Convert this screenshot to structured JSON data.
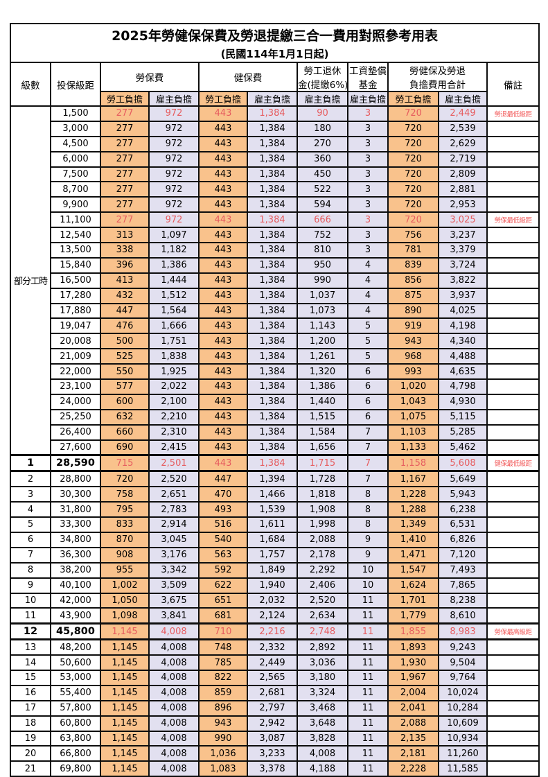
{
  "page": {
    "title": "2025年勞健保保費及勞退提繳三合一費用對照參考用表",
    "subtitle": "(民國114年1月1日起)"
  },
  "colors": {
    "employee_share_bg": "#f9c28c",
    "employer_share_bg": "#e2e0f0",
    "highlight_value_text": "#e65c5f",
    "remark_text": "#f25c5c",
    "grid_border": "#0d0d0d"
  },
  "header": {
    "level": "級數",
    "bracket": "投保級距",
    "labor_fee": "勞保費",
    "health_fee": "健保費",
    "pension_line1": "勞工退休",
    "pension_line2": "金(提繳6%)",
    "wage_fund_line1": "工資墊償",
    "wage_fund_line2": "基金",
    "total_line1": "勞健保及勞退",
    "total_line2": "負擔費用合計",
    "remark": "備註",
    "employee_share": "勞工負擔",
    "employer_share": "雇主負擔"
  },
  "part_time_label": "部分工時",
  "rows": [
    {
      "level": "",
      "bracket": "1,500",
      "values": [
        "277",
        "972",
        "443",
        "1,384",
        "90",
        "3",
        "720",
        "2,449"
      ],
      "remark": "勞退最低級距",
      "red": true,
      "bold": false
    },
    {
      "level": "",
      "bracket": "3,000",
      "values": [
        "277",
        "972",
        "443",
        "1,384",
        "180",
        "3",
        "720",
        "2,539"
      ],
      "remark": "",
      "red": false,
      "bold": false
    },
    {
      "level": "",
      "bracket": "4,500",
      "values": [
        "277",
        "972",
        "443",
        "1,384",
        "270",
        "3",
        "720",
        "2,629"
      ],
      "remark": "",
      "red": false,
      "bold": false
    },
    {
      "level": "",
      "bracket": "6,000",
      "values": [
        "277",
        "972",
        "443",
        "1,384",
        "360",
        "3",
        "720",
        "2,719"
      ],
      "remark": "",
      "red": false,
      "bold": false
    },
    {
      "level": "",
      "bracket": "7,500",
      "values": [
        "277",
        "972",
        "443",
        "1,384",
        "450",
        "3",
        "720",
        "2,809"
      ],
      "remark": "",
      "red": false,
      "bold": false
    },
    {
      "level": "",
      "bracket": "8,700",
      "values": [
        "277",
        "972",
        "443",
        "1,384",
        "522",
        "3",
        "720",
        "2,881"
      ],
      "remark": "",
      "red": false,
      "bold": false
    },
    {
      "level": "",
      "bracket": "9,900",
      "values": [
        "277",
        "972",
        "443",
        "1,384",
        "594",
        "3",
        "720",
        "2,953"
      ],
      "remark": "",
      "red": false,
      "bold": false
    },
    {
      "level": "",
      "bracket": "11,100",
      "values": [
        "277",
        "972",
        "443",
        "1,384",
        "666",
        "3",
        "720",
        "3,025"
      ],
      "remark": "勞保最低級距",
      "red": true,
      "bold": false
    },
    {
      "level": "",
      "bracket": "12,540",
      "values": [
        "313",
        "1,097",
        "443",
        "1,384",
        "752",
        "3",
        "756",
        "3,237"
      ],
      "remark": "",
      "red": false,
      "bold": false
    },
    {
      "level": "",
      "bracket": "13,500",
      "values": [
        "338",
        "1,182",
        "443",
        "1,384",
        "810",
        "3",
        "781",
        "3,379"
      ],
      "remark": "",
      "red": false,
      "bold": false
    },
    {
      "level": "",
      "bracket": "15,840",
      "values": [
        "396",
        "1,386",
        "443",
        "1,384",
        "950",
        "4",
        "839",
        "3,724"
      ],
      "remark": "",
      "red": false,
      "bold": false
    },
    {
      "level": "",
      "bracket": "16,500",
      "values": [
        "413",
        "1,444",
        "443",
        "1,384",
        "990",
        "4",
        "856",
        "3,822"
      ],
      "remark": "",
      "red": false,
      "bold": false
    },
    {
      "level": "",
      "bracket": "17,280",
      "values": [
        "432",
        "1,512",
        "443",
        "1,384",
        "1,037",
        "4",
        "875",
        "3,937"
      ],
      "remark": "",
      "red": false,
      "bold": false
    },
    {
      "level": "",
      "bracket": "17,880",
      "values": [
        "447",
        "1,564",
        "443",
        "1,384",
        "1,073",
        "4",
        "890",
        "4,025"
      ],
      "remark": "",
      "red": false,
      "bold": false
    },
    {
      "level": "",
      "bracket": "19,047",
      "values": [
        "476",
        "1,666",
        "443",
        "1,384",
        "1,143",
        "5",
        "919",
        "4,198"
      ],
      "remark": "",
      "red": false,
      "bold": false
    },
    {
      "level": "",
      "bracket": "20,008",
      "values": [
        "500",
        "1,751",
        "443",
        "1,384",
        "1,200",
        "5",
        "943",
        "4,340"
      ],
      "remark": "",
      "red": false,
      "bold": false
    },
    {
      "level": "",
      "bracket": "21,009",
      "values": [
        "525",
        "1,838",
        "443",
        "1,384",
        "1,261",
        "5",
        "968",
        "4,488"
      ],
      "remark": "",
      "red": false,
      "bold": false
    },
    {
      "level": "",
      "bracket": "22,000",
      "values": [
        "550",
        "1,925",
        "443",
        "1,384",
        "1,320",
        "6",
        "993",
        "4,635"
      ],
      "remark": "",
      "red": false,
      "bold": false
    },
    {
      "level": "",
      "bracket": "23,100",
      "values": [
        "577",
        "2,022",
        "443",
        "1,384",
        "1,386",
        "6",
        "1,020",
        "4,798"
      ],
      "remark": "",
      "red": false,
      "bold": false
    },
    {
      "level": "",
      "bracket": "24,000",
      "values": [
        "600",
        "2,100",
        "443",
        "1,384",
        "1,440",
        "6",
        "1,043",
        "4,930"
      ],
      "remark": "",
      "red": false,
      "bold": false
    },
    {
      "level": "",
      "bracket": "25,250",
      "values": [
        "632",
        "2,210",
        "443",
        "1,384",
        "1,515",
        "6",
        "1,075",
        "5,115"
      ],
      "remark": "",
      "red": false,
      "bold": false
    },
    {
      "level": "",
      "bracket": "26,400",
      "values": [
        "660",
        "2,310",
        "443",
        "1,384",
        "1,584",
        "7",
        "1,103",
        "5,285"
      ],
      "remark": "",
      "red": false,
      "bold": false
    },
    {
      "level": "",
      "bracket": "27,600",
      "values": [
        "690",
        "2,415",
        "443",
        "1,384",
        "1,656",
        "7",
        "1,133",
        "5,462"
      ],
      "remark": "",
      "red": false,
      "bold": false
    },
    {
      "level": "1",
      "bracket": "28,590",
      "values": [
        "715",
        "2,501",
        "443",
        "1,384",
        "1,715",
        "7",
        "1,158",
        "5,608"
      ],
      "remark": "健保最低級距",
      "red": true,
      "bold": true
    },
    {
      "level": "2",
      "bracket": "28,800",
      "values": [
        "720",
        "2,520",
        "447",
        "1,394",
        "1,728",
        "7",
        "1,167",
        "5,649"
      ],
      "remark": "",
      "red": false,
      "bold": false
    },
    {
      "level": "3",
      "bracket": "30,300",
      "values": [
        "758",
        "2,651",
        "470",
        "1,466",
        "1,818",
        "8",
        "1,228",
        "5,943"
      ],
      "remark": "",
      "red": false,
      "bold": false
    },
    {
      "level": "4",
      "bracket": "31,800",
      "values": [
        "795",
        "2,783",
        "493",
        "1,539",
        "1,908",
        "8",
        "1,288",
        "6,238"
      ],
      "remark": "",
      "red": false,
      "bold": false
    },
    {
      "level": "5",
      "bracket": "33,300",
      "values": [
        "833",
        "2,914",
        "516",
        "1,611",
        "1,998",
        "8",
        "1,349",
        "6,531"
      ],
      "remark": "",
      "red": false,
      "bold": false
    },
    {
      "level": "6",
      "bracket": "34,800",
      "values": [
        "870",
        "3,045",
        "540",
        "1,684",
        "2,088",
        "9",
        "1,410",
        "6,826"
      ],
      "remark": "",
      "red": false,
      "bold": false
    },
    {
      "level": "7",
      "bracket": "36,300",
      "values": [
        "908",
        "3,176",
        "563",
        "1,757",
        "2,178",
        "9",
        "1,471",
        "7,120"
      ],
      "remark": "",
      "red": false,
      "bold": false
    },
    {
      "level": "8",
      "bracket": "38,200",
      "values": [
        "955",
        "3,342",
        "592",
        "1,849",
        "2,292",
        "10",
        "1,547",
        "7,493"
      ],
      "remark": "",
      "red": false,
      "bold": false
    },
    {
      "level": "9",
      "bracket": "40,100",
      "values": [
        "1,002",
        "3,509",
        "622",
        "1,940",
        "2,406",
        "10",
        "1,624",
        "7,865"
      ],
      "remark": "",
      "red": false,
      "bold": false
    },
    {
      "level": "10",
      "bracket": "42,000",
      "values": [
        "1,050",
        "3,675",
        "651",
        "2,032",
        "2,520",
        "11",
        "1,701",
        "8,238"
      ],
      "remark": "",
      "red": false,
      "bold": false
    },
    {
      "level": "11",
      "bracket": "43,900",
      "values": [
        "1,098",
        "3,841",
        "681",
        "2,124",
        "2,634",
        "11",
        "1,779",
        "8,610"
      ],
      "remark": "",
      "red": false,
      "bold": false
    },
    {
      "level": "12",
      "bracket": "45,800",
      "values": [
        "1,145",
        "4,008",
        "710",
        "2,216",
        "2,748",
        "11",
        "1,855",
        "8,983"
      ],
      "remark": "勞保最高級距",
      "red": true,
      "bold": true
    },
    {
      "level": "13",
      "bracket": "48,200",
      "values": [
        "1,145",
        "4,008",
        "748",
        "2,332",
        "2,892",
        "11",
        "1,893",
        "9,243"
      ],
      "remark": "",
      "red": false,
      "bold": false
    },
    {
      "level": "14",
      "bracket": "50,600",
      "values": [
        "1,145",
        "4,008",
        "785",
        "2,449",
        "3,036",
        "11",
        "1,930",
        "9,504"
      ],
      "remark": "",
      "red": false,
      "bold": false
    },
    {
      "level": "15",
      "bracket": "53,000",
      "values": [
        "1,145",
        "4,008",
        "822",
        "2,565",
        "3,180",
        "11",
        "1,967",
        "9,764"
      ],
      "remark": "",
      "red": false,
      "bold": false
    },
    {
      "level": "16",
      "bracket": "55,400",
      "values": [
        "1,145",
        "4,008",
        "859",
        "2,681",
        "3,324",
        "11",
        "2,004",
        "10,024"
      ],
      "remark": "",
      "red": false,
      "bold": false
    },
    {
      "level": "17",
      "bracket": "57,800",
      "values": [
        "1,145",
        "4,008",
        "896",
        "2,797",
        "3,468",
        "11",
        "2,041",
        "10,284"
      ],
      "remark": "",
      "red": false,
      "bold": false
    },
    {
      "level": "18",
      "bracket": "60,800",
      "values": [
        "1,145",
        "4,008",
        "943",
        "2,942",
        "3,648",
        "11",
        "2,088",
        "10,609"
      ],
      "remark": "",
      "red": false,
      "bold": false
    },
    {
      "level": "19",
      "bracket": "63,800",
      "values": [
        "1,145",
        "4,008",
        "990",
        "3,087",
        "3,828",
        "11",
        "2,135",
        "10,934"
      ],
      "remark": "",
      "red": false,
      "bold": false
    },
    {
      "level": "20",
      "bracket": "66,800",
      "values": [
        "1,145",
        "4,008",
        "1,036",
        "3,233",
        "4,008",
        "11",
        "2,181",
        "11,260"
      ],
      "remark": "",
      "red": false,
      "bold": false
    },
    {
      "level": "21",
      "bracket": "69,800",
      "values": [
        "1,145",
        "4,008",
        "1,083",
        "3,378",
        "4,188",
        "11",
        "2,228",
        "11,585"
      ],
      "remark": "",
      "red": false,
      "bold": false
    }
  ]
}
